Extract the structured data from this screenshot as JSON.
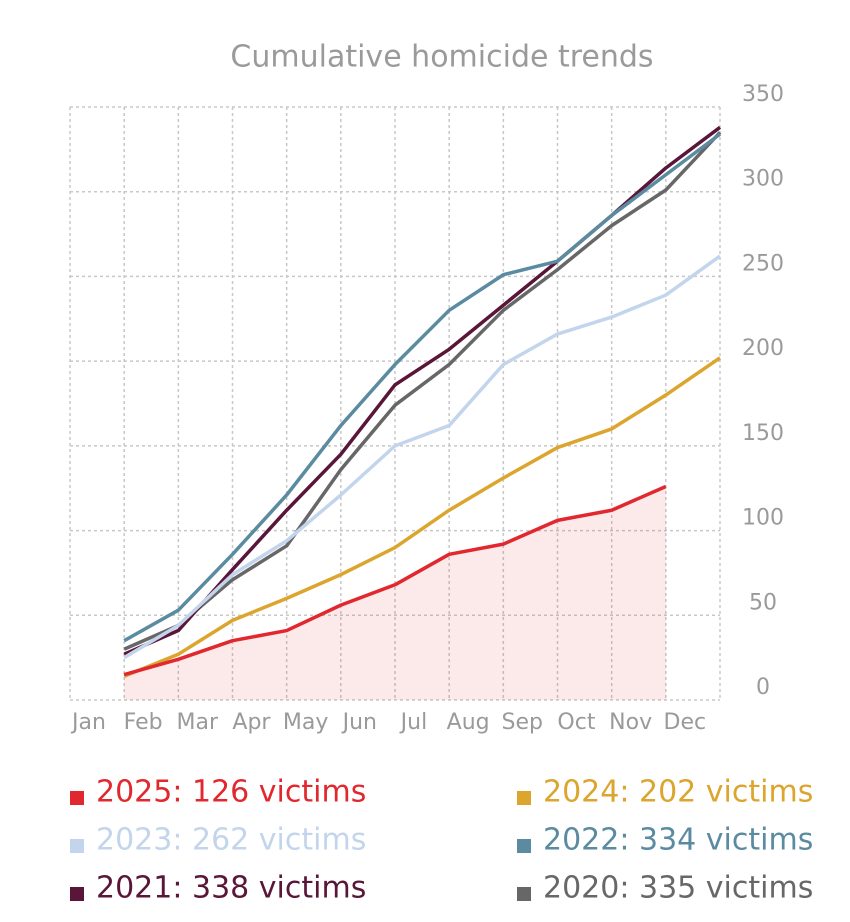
{
  "chart_data": {
    "type": "line",
    "title": "Cumulative homicide trends",
    "categories": [
      "Jan",
      "Feb",
      "Mar",
      "Apr",
      "May",
      "Jun",
      "Jul",
      "Aug",
      "Sep",
      "Oct",
      "Nov",
      "Dec"
    ],
    "ylim": [
      0,
      350
    ],
    "yticks": [
      0,
      50,
      100,
      150,
      200,
      250,
      300,
      350
    ],
    "grid": true,
    "area_series": 0,
    "series": [
      {
        "name": "2025: 126 victims",
        "color": "#e0282e",
        "values": [
          15,
          24,
          35,
          41,
          56,
          68,
          86,
          92,
          106,
          112,
          126,
          null
        ]
      },
      {
        "name": "2024: 202 victims",
        "color": "#dba52e",
        "values": [
          14,
          27,
          47,
          60,
          74,
          90,
          112,
          131,
          149,
          160,
          180,
          202
        ]
      },
      {
        "name": "2023: 262 victims",
        "color": "#c3d5ec",
        "values": [
          25,
          44,
          74,
          94,
          121,
          150,
          162,
          198,
          216,
          226,
          239,
          262
        ]
      },
      {
        "name": "2022: 334 victims",
        "color": "#5b8ba1",
        "values": [
          35,
          53,
          86,
          121,
          162,
          198,
          230,
          251,
          259,
          286,
          310,
          334
        ]
      },
      {
        "name": "2021: 338 victims",
        "color": "#5a1638",
        "values": [
          27,
          41,
          77,
          112,
          145,
          186,
          207,
          233,
          259,
          286,
          314,
          338
        ]
      },
      {
        "name": "2020: 335 victims",
        "color": "#676767",
        "values": [
          30,
          44,
          71,
          91,
          136,
          174,
          198,
          230,
          254,
          280,
          301,
          335
        ]
      }
    ]
  }
}
